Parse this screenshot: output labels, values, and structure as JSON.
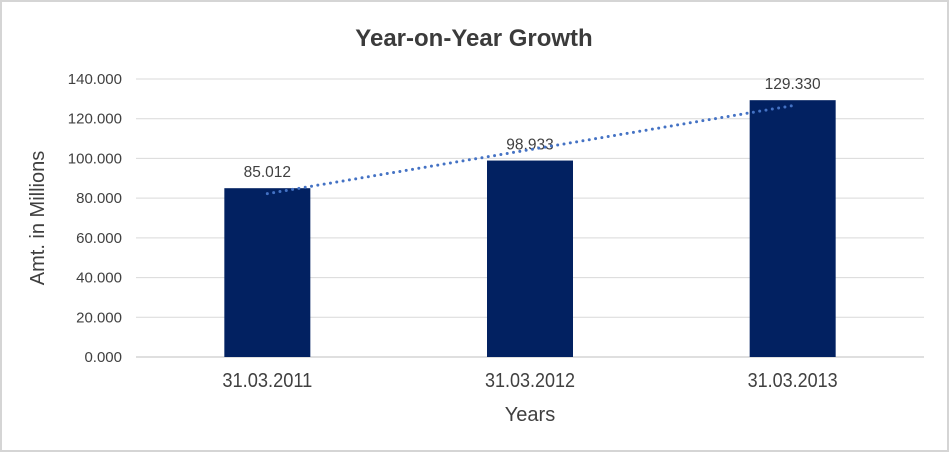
{
  "chart_data": {
    "type": "bar",
    "title": "Year-on-Year Growth",
    "categories": [
      "31.03.2011",
      "31.03.2012",
      "31.03.2013"
    ],
    "values": [
      85.012,
      98.933,
      129.33
    ],
    "value_labels": [
      "85.012",
      "98.933",
      "129.330"
    ],
    "xlabel": "Years",
    "ylabel": "Amt. in Millions",
    "ylim": [
      0,
      140
    ],
    "yticks": [
      {
        "v": 0,
        "label": "0.000"
      },
      {
        "v": 20,
        "label": "20.000"
      },
      {
        "v": 40,
        "label": "40.000"
      },
      {
        "v": 60,
        "label": "60.000"
      },
      {
        "v": 80,
        "label": "80.000"
      },
      {
        "v": 100,
        "label": "100.000"
      },
      {
        "v": 120,
        "label": "120.000"
      },
      {
        "v": 140,
        "label": "140.000"
      }
    ],
    "grid": true,
    "legend": "none",
    "trendline": {
      "type": "linear",
      "style": "dotted"
    },
    "colors": {
      "bar": "#022161",
      "trendline": "#4472C4",
      "grid": "#D9D9D9",
      "axis_line": "#BFBFBF",
      "text": "#404040",
      "title_text": "#3B3B3B",
      "frame_border": "#D5D5D5",
      "background": "#FFFFFF"
    }
  }
}
